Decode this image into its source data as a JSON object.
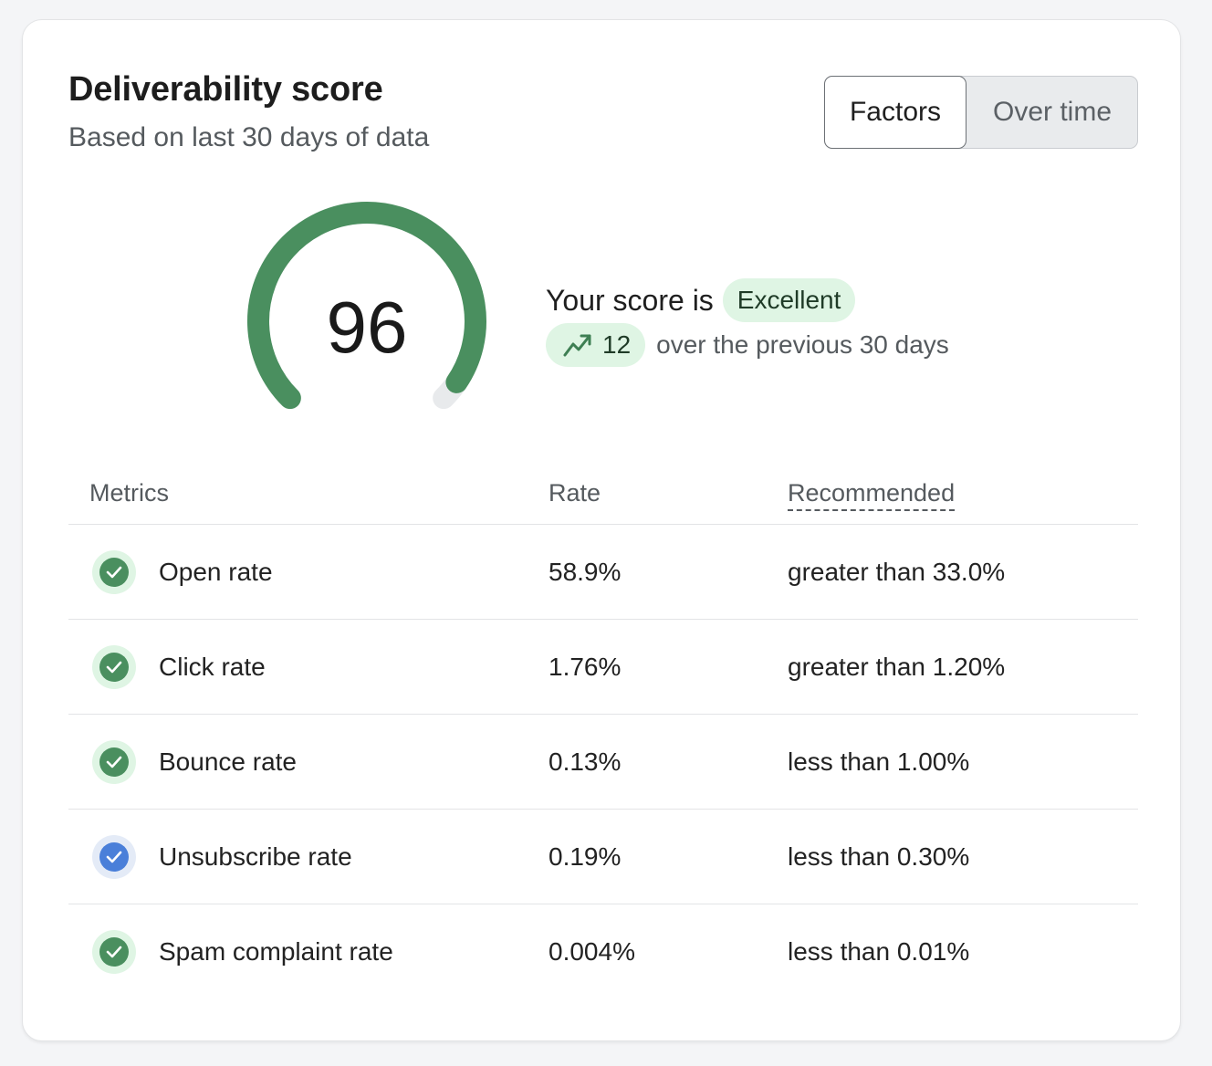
{
  "header": {
    "title": "Deliverability score",
    "subtitle": "Based on last 30 days of data"
  },
  "view_toggle": {
    "options": [
      "Factors",
      "Over time"
    ],
    "selected": "Factors"
  },
  "gauge": {
    "score": "96",
    "max": 100,
    "fill_color": "#4a8f5f",
    "track_color": "#e8eaec"
  },
  "summary": {
    "prefix": "Your score is",
    "rating": "Excellent",
    "change_icon": "trending-up-icon",
    "change": "12",
    "change_suffix": "over the previous 30 days"
  },
  "metrics_table": {
    "headers": {
      "metric": "Metrics",
      "rate": "Rate",
      "recommended": "Recommended"
    },
    "rows": [
      {
        "metric": "Open rate",
        "rate": "58.9%",
        "recommended": "greater than 33.0%",
        "status": "good",
        "icon": "check-circle-icon"
      },
      {
        "metric": "Click rate",
        "rate": "1.76%",
        "recommended": "greater than 1.20%",
        "status": "good",
        "icon": "check-circle-icon"
      },
      {
        "metric": "Bounce rate",
        "rate": "0.13%",
        "recommended": "less than 1.00%",
        "status": "good",
        "icon": "check-circle-icon"
      },
      {
        "metric": "Unsubscribe rate",
        "rate": "0.19%",
        "recommended": "less than 0.30%",
        "status": "info",
        "icon": "check-circle-icon"
      },
      {
        "metric": "Spam complaint rate",
        "rate": "0.004%",
        "recommended": "less than 0.01%",
        "status": "good",
        "icon": "check-circle-icon"
      }
    ]
  },
  "colors": {
    "good": "#4a8f5f",
    "good_halo": "#dff5e4",
    "info": "#4a7fd9",
    "info_halo": "#e4ebf7"
  }
}
